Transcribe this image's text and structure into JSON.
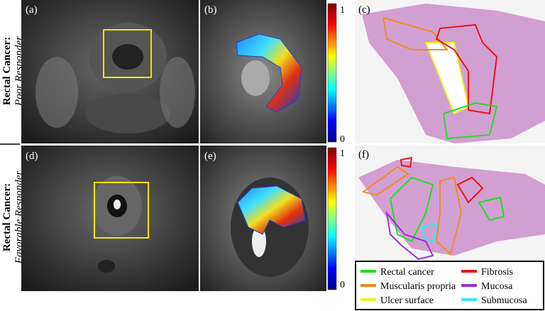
{
  "rows": [
    {
      "title": "Rectal Cancer:",
      "subtitle": "Poor Responder"
    },
    {
      "title": "Rectal Cancer:",
      "subtitle": "Favorable Responder"
    }
  ],
  "panels": [
    "(a)",
    "(b)",
    "(c)",
    "(d)",
    "(e)",
    "(f)"
  ],
  "colorbars": [
    {
      "max": 1,
      "min": 0
    },
    {
      "max": 1,
      "min": 0
    }
  ],
  "legend": [
    {
      "label": "Rectal cancer",
      "color": "#22dd22"
    },
    {
      "label": "Fibrosis",
      "color": "#e8141e"
    },
    {
      "label": "Muscularis propria",
      "color": "#f08a24"
    },
    {
      "label": "Mucosa",
      "color": "#9a32d8"
    },
    {
      "label": "Ulcer surface",
      "color": "#f0f020"
    },
    {
      "label": "Submucosa",
      "color": "#30e8f0"
    }
  ]
}
